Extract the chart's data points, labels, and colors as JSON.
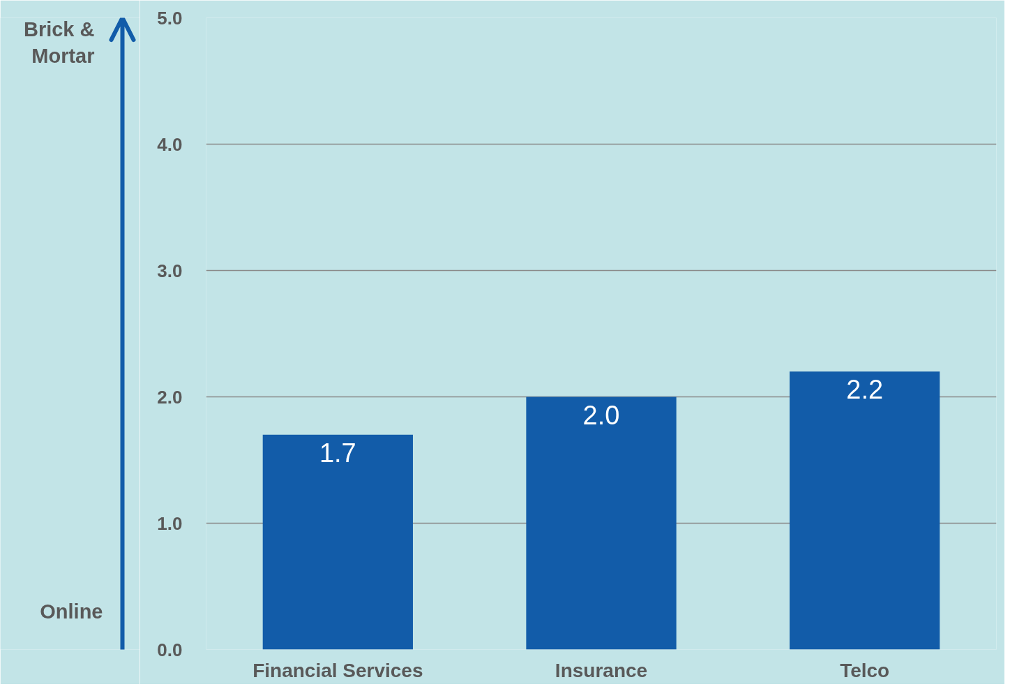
{
  "chart_data": {
    "type": "bar",
    "categories": [
      "Financial Services",
      "Insurance",
      "Telco"
    ],
    "values": [
      1.7,
      2.0,
      2.2
    ],
    "value_labels": [
      "1.7",
      "2.0",
      "2.2"
    ],
    "color": "#125ca9",
    "ylim": [
      0,
      5
    ],
    "yticks": [
      {
        "value": 0,
        "label": "0.0"
      },
      {
        "value": 1,
        "label": "1.0"
      },
      {
        "value": 2,
        "label": "2.0"
      },
      {
        "value": 3,
        "label": "3.0"
      },
      {
        "value": 4,
        "label": "4.0"
      },
      {
        "value": 5,
        "label": "5.0"
      }
    ],
    "grid": "y",
    "annotations": [
      "Brick &\nMortar",
      "Online"
    ]
  }
}
